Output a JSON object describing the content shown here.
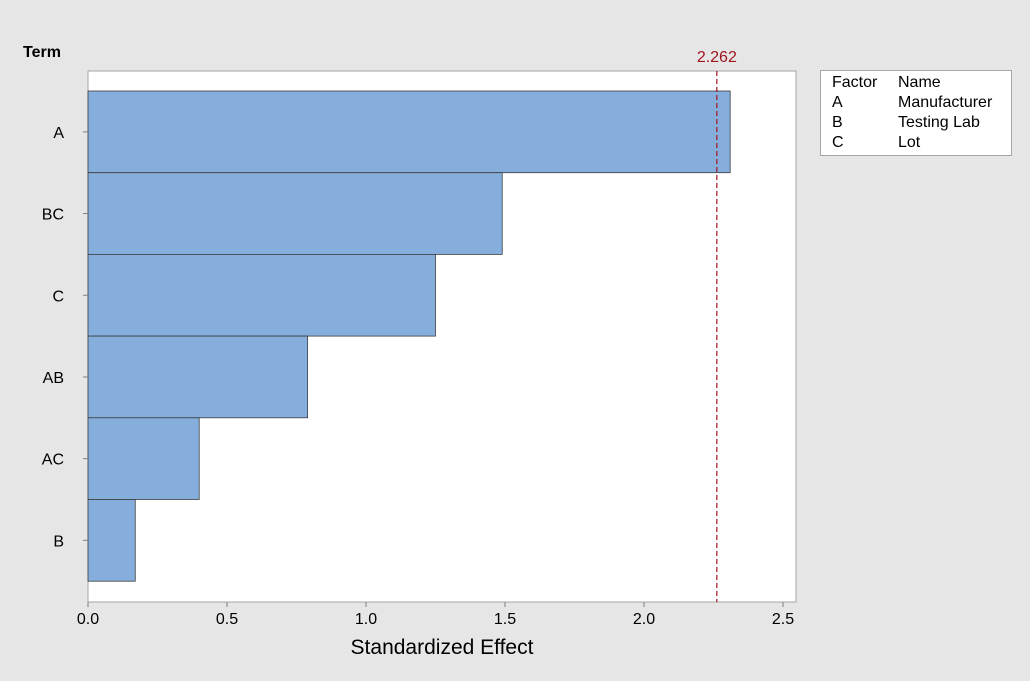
{
  "chart_data": {
    "type": "bar",
    "orientation": "horizontal",
    "y_title": "Term",
    "xlabel": "Standardized Effect",
    "categories": [
      "A",
      "BC",
      "C",
      "AB",
      "AC",
      "B"
    ],
    "values": [
      2.31,
      1.49,
      1.25,
      0.79,
      0.4,
      0.17
    ],
    "xlim": [
      0,
      2.55
    ],
    "xticks": [
      "0.0",
      "0.5",
      "1.0",
      "1.5",
      "2.0",
      "2.5"
    ],
    "reference_line": {
      "value": 2.262,
      "label": "2.262",
      "style": "dashed"
    },
    "grid": false,
    "legend": {
      "placement": "right",
      "header": [
        "Factor",
        "Name"
      ],
      "entries": [
        {
          "factor": "A",
          "name": "Manufacturer"
        },
        {
          "factor": "B",
          "name": "Testing Lab"
        },
        {
          "factor": "C",
          "name": "Lot"
        }
      ]
    },
    "colors": {
      "bar_fill": "#86aedd",
      "bar_edge": "#3c3c3c",
      "reference_line": "#a0141e",
      "plot_background": "#ffffff",
      "page_background": "#e6e6e6"
    }
  }
}
